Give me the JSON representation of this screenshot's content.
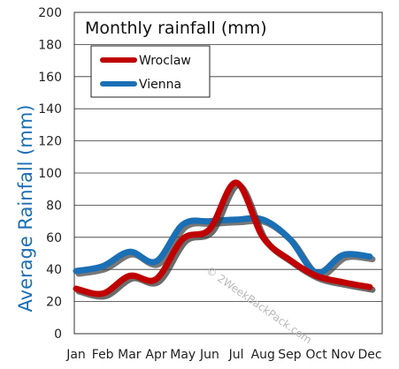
{
  "chart_data": {
    "type": "line",
    "title": "Monthly rainfall (mm)",
    "ylabel": "Average Rainfall (mm)",
    "xlabel": "",
    "categories": [
      "Jan",
      "Feb",
      "Mar",
      "Apr",
      "May",
      "Jun",
      "Jul",
      "Aug",
      "Sep",
      "Oct",
      "Nov",
      "Dec"
    ],
    "ylim": [
      0,
      200
    ],
    "yticks": [
      0,
      20,
      40,
      60,
      80,
      100,
      120,
      140,
      160,
      180,
      200
    ],
    "grid": true,
    "legend_position": "top-left",
    "series": [
      {
        "name": "Wroclaw",
        "color": "#c00000",
        "shadow": "#3a3a3a",
        "values": [
          28,
          25,
          36,
          34,
          59,
          65,
          94,
          60,
          46,
          36,
          32,
          29
        ]
      },
      {
        "name": "Vienna",
        "color": "#1a6fb5",
        "shadow": "#4a4a4a",
        "values": [
          39,
          42,
          51,
          45,
          68,
          70,
          71,
          71,
          59,
          38,
          49,
          48
        ]
      }
    ]
  },
  "watermark": "© 2WeekBackPack.com"
}
